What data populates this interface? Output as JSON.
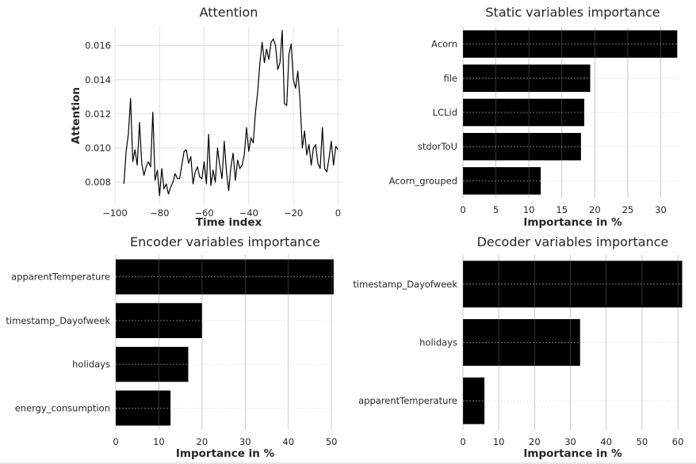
{
  "chart_data": [
    {
      "id": "attention",
      "type": "line",
      "title": "Attention",
      "xlabel": "Time index",
      "ylabel": "Attention",
      "xlim": [
        -100,
        2
      ],
      "ylim": [
        0.0067,
        0.0171
      ],
      "xticks": [
        -100,
        -80,
        -60,
        -40,
        -20,
        0
      ],
      "yticks": [
        0.008,
        0.01,
        0.012,
        0.014,
        0.016
      ],
      "ytick_labels": [
        "0.008",
        "0.010",
        "0.012",
        "0.014",
        "0.016"
      ],
      "grid": true,
      "line_color": "#000000",
      "x": [
        -96,
        -95,
        -94,
        -93,
        -92,
        -91,
        -90,
        -89,
        -88,
        -87,
        -86,
        -85,
        -84,
        -83,
        -82,
        -81,
        -80,
        -79,
        -78,
        -77,
        -76,
        -75,
        -74,
        -73,
        -72,
        -71,
        -70,
        -69,
        -68,
        -67,
        -66,
        -65,
        -64,
        -63,
        -62,
        -61,
        -60,
        -59,
        -58,
        -57,
        -56,
        -55,
        -54,
        -53,
        -52,
        -51,
        -50,
        -49,
        -48,
        -47,
        -46,
        -45,
        -44,
        -43,
        -42,
        -41,
        -40,
        -39,
        -38,
        -37,
        -36,
        -35,
        -34,
        -33,
        -32,
        -31,
        -30,
        -29,
        -28,
        -27,
        -26,
        -25,
        -24,
        -23,
        -22,
        -21,
        -20,
        -19,
        -18,
        -17,
        -16,
        -15,
        -14,
        -13,
        -12,
        -11,
        -10,
        -9,
        -8,
        -7,
        -6,
        -5,
        -4,
        -3,
        -2,
        -1,
        0
      ],
      "y": [
        0.0079,
        0.0098,
        0.0108,
        0.0129,
        0.0092,
        0.0099,
        0.009,
        0.0115,
        0.0091,
        0.0084,
        0.0089,
        0.0092,
        0.0089,
        0.0121,
        0.0081,
        0.0087,
        0.0072,
        0.0088,
        0.0076,
        0.0079,
        0.0073,
        0.0077,
        0.008,
        0.0085,
        0.0082,
        0.0082,
        0.009,
        0.0098,
        0.0099,
        0.0091,
        0.0095,
        0.0079,
        0.0086,
        0.0089,
        0.0083,
        0.0082,
        0.0092,
        0.0079,
        0.0108,
        0.0078,
        0.0087,
        0.008,
        0.01,
        0.009,
        0.0082,
        0.0104,
        0.0086,
        0.0075,
        0.0089,
        0.0097,
        0.0081,
        0.0093,
        0.0088,
        0.009,
        0.0096,
        0.0112,
        0.0098,
        0.0106,
        0.0103,
        0.0121,
        0.0133,
        0.015,
        0.0162,
        0.015,
        0.0158,
        0.0152,
        0.0162,
        0.0164,
        0.016,
        0.0146,
        0.015,
        0.0169,
        0.0126,
        0.0125,
        0.0155,
        0.0161,
        0.014,
        0.0135,
        0.0145,
        0.0128,
        0.01,
        0.011,
        0.0096,
        0.0102,
        0.009,
        0.01,
        0.0102,
        0.0091,
        0.0088,
        0.0112,
        0.0088,
        0.0086,
        0.0094,
        0.0104,
        0.009,
        0.0101,
        0.0099
      ]
    },
    {
      "id": "static",
      "type": "bar",
      "orientation": "horizontal",
      "title": "Static variables importance",
      "xlabel": "Importance in %",
      "categories": [
        "Acorn",
        "file",
        "LCLid",
        "stdorToU",
        "Acorn_grouped"
      ],
      "values": [
        32.5,
        19.3,
        18.4,
        17.9,
        11.8
      ],
      "xlim": [
        0,
        33.3
      ],
      "xticks": [
        0,
        5,
        10,
        15,
        20,
        25,
        30
      ],
      "grid": true,
      "bar_color": "#000000"
    },
    {
      "id": "encoder",
      "type": "bar",
      "orientation": "horizontal",
      "title": "Encoder variables importance",
      "xlabel": "Importance in %",
      "categories": [
        "apparentTemperature",
        "timestamp_Dayofweek",
        "holidays",
        "energy_consumption"
      ],
      "values": [
        50.5,
        20.0,
        16.8,
        12.7
      ],
      "xlim": [
        0,
        50.7
      ],
      "xticks": [
        0,
        10,
        20,
        30,
        40,
        50
      ],
      "grid": true,
      "bar_color": "#000000"
    },
    {
      "id": "decoder",
      "type": "bar",
      "orientation": "horizontal",
      "title": "Decoder variables importance",
      "xlabel": "Importance in %",
      "categories": [
        "timestamp_Dayofweek",
        "holidays",
        "apparentTemperature"
      ],
      "values": [
        61.2,
        32.7,
        6.0
      ],
      "xlim": [
        0,
        61.3
      ],
      "xticks": [
        0,
        10,
        20,
        30,
        40,
        50,
        60
      ],
      "grid": true,
      "bar_color": "#000000"
    }
  ]
}
